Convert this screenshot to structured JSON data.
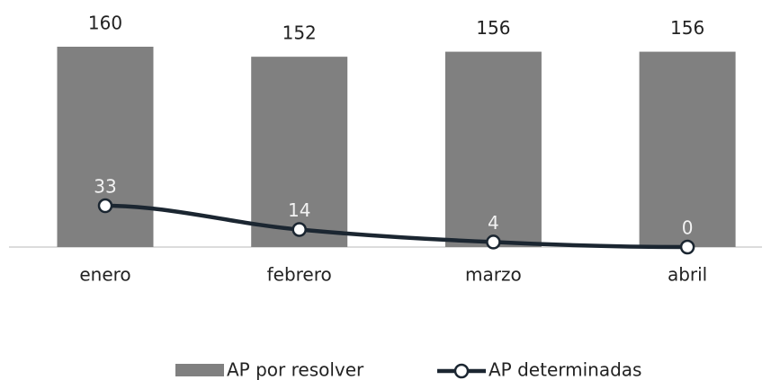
{
  "chart_data": {
    "type": "bar_line",
    "categories": [
      "enero",
      "febrero",
      "marzo",
      "abril"
    ],
    "series": [
      {
        "name": "AP por resolver",
        "type": "bar",
        "color": "#808080",
        "values": [
          160,
          152,
          156,
          156
        ]
      },
      {
        "name": "AP determinadas",
        "type": "line",
        "color": "#1b2631",
        "values": [
          33,
          14,
          4,
          0
        ]
      }
    ],
    "legend": "bottom"
  }
}
